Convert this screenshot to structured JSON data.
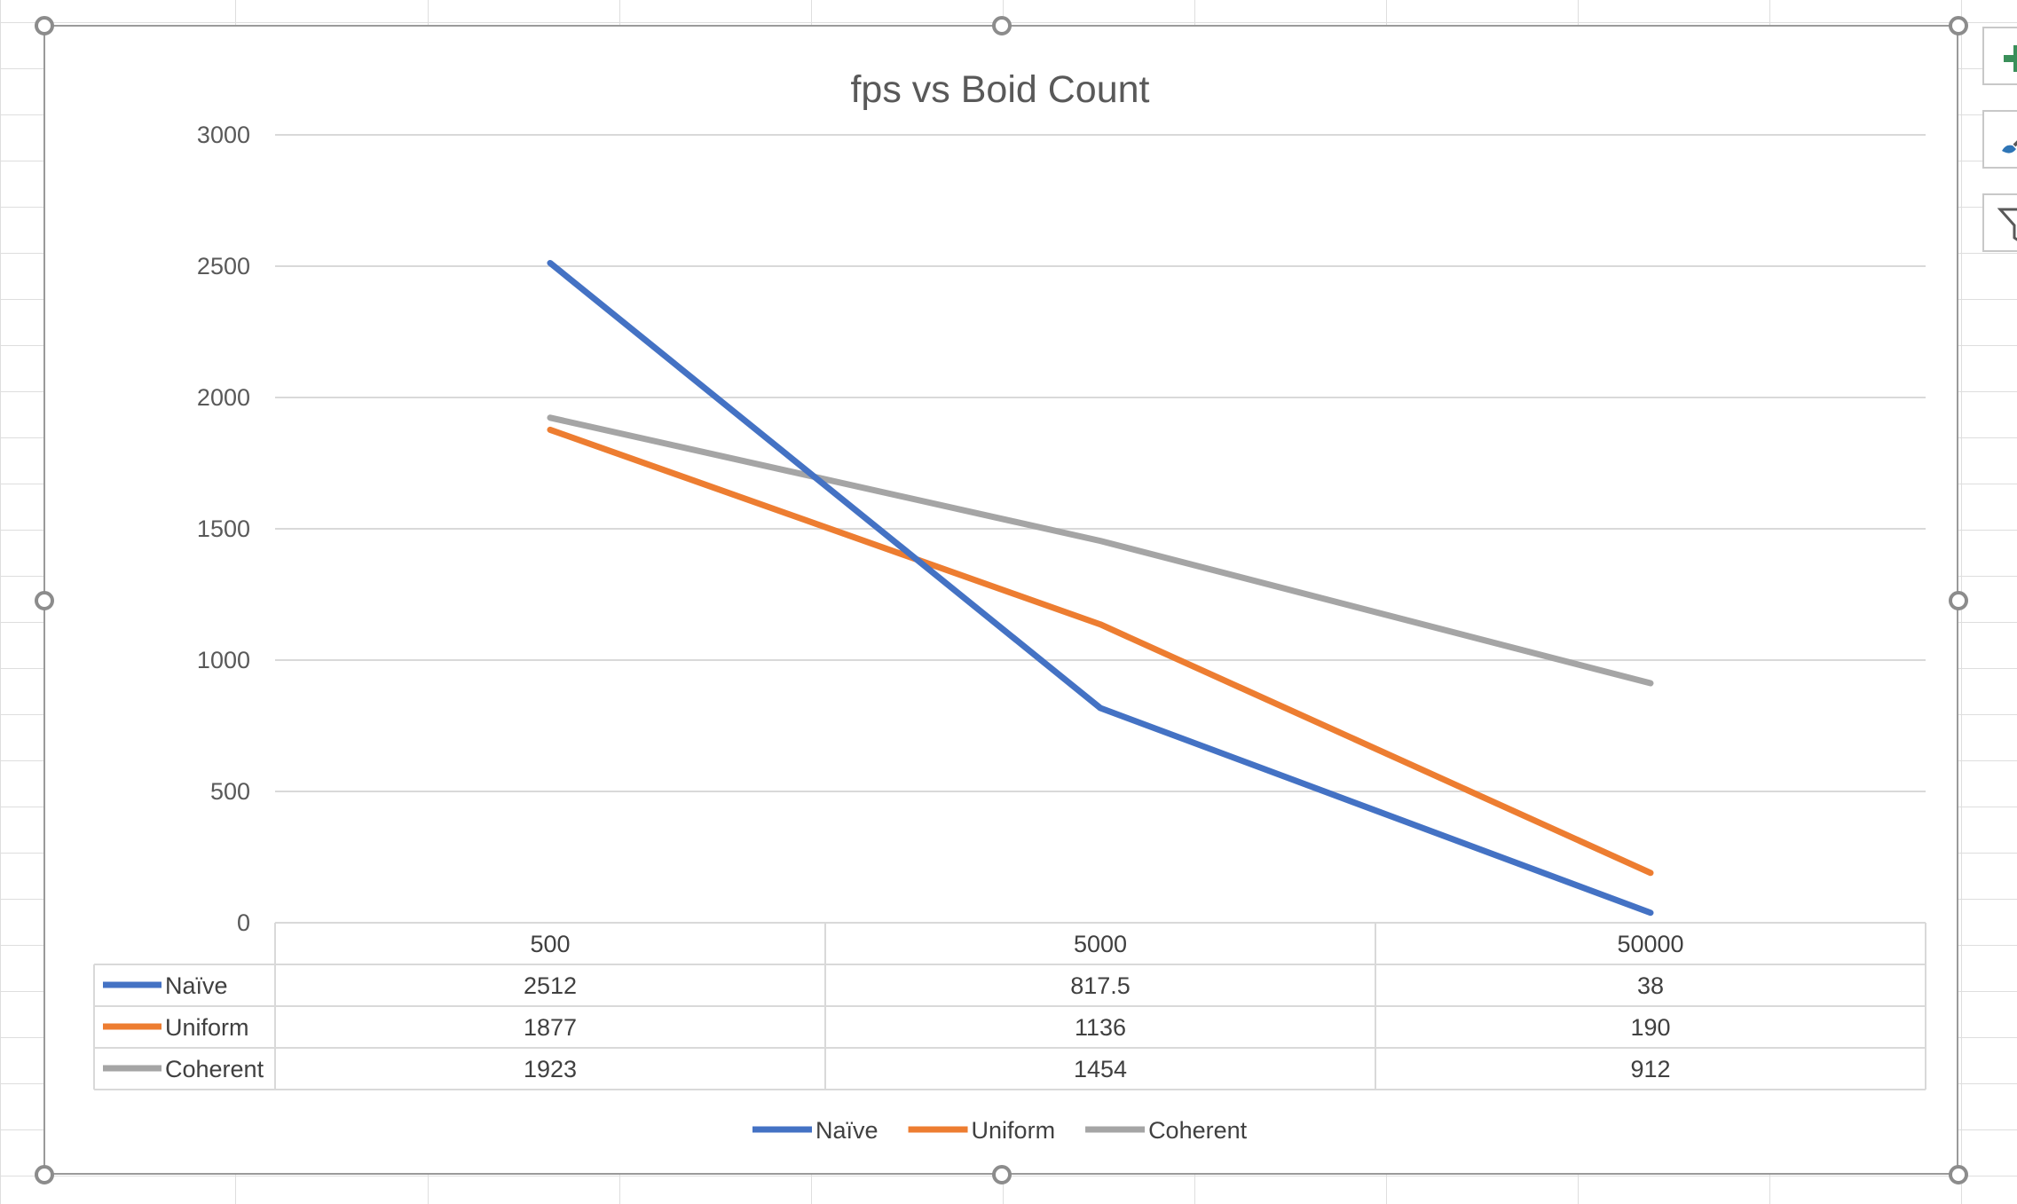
{
  "chart_data": {
    "type": "line",
    "title": "fps vs Boid Count",
    "xlabel": "",
    "ylabel": "",
    "categories": [
      "500",
      "5000",
      "50000"
    ],
    "series": [
      {
        "name": "Naïve",
        "color": "#4472c4",
        "values": [
          2512,
          817.5,
          38
        ],
        "labels": [
          "2512",
          "817.5",
          "38"
        ]
      },
      {
        "name": "Uniform",
        "color": "#ed7d31",
        "values": [
          1877,
          1136,
          190
        ],
        "labels": [
          "1877",
          "1136",
          "190"
        ]
      },
      {
        "name": "Coherent",
        "color": "#a5a5a5",
        "values": [
          1923,
          1454,
          912
        ],
        "labels": [
          "1923",
          "1454",
          "912"
        ]
      }
    ],
    "ylim": [
      0,
      3000
    ],
    "yticks": [
      "0",
      "500",
      "1000",
      "1500",
      "2000",
      "2500",
      "3000"
    ],
    "grid": true,
    "legend": "bottom",
    "data_table": true
  },
  "chart_tools": {
    "elements_icon": "plus-icon",
    "styles_icon": "brush-icon",
    "filter_icon": "filter-icon"
  }
}
